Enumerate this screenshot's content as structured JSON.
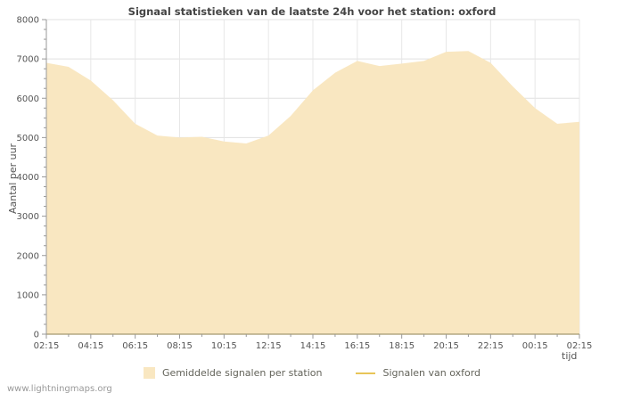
{
  "footer": {
    "watermark": "www.lightningmaps.org"
  },
  "chart_data": {
    "type": "area",
    "title": "Signaal statistieken van de laatste 24h voor het station: oxford",
    "xlabel": "tijd",
    "ylabel": "Aantal per uur",
    "ylim": [
      0,
      8000
    ],
    "y_tick_step": 1000,
    "grid": true,
    "legend_position": "bottom",
    "x": [
      "02:15",
      "03:15",
      "04:15",
      "05:15",
      "06:15",
      "07:15",
      "08:15",
      "09:15",
      "10:15",
      "11:15",
      "12:15",
      "13:15",
      "14:15",
      "15:15",
      "16:15",
      "17:15",
      "18:15",
      "19:15",
      "20:15",
      "21:15",
      "22:15",
      "23:15",
      "00:15",
      "01:15",
      "02:15"
    ],
    "x_tick_labels": [
      "02:15",
      "04:15",
      "06:15",
      "08:15",
      "10:15",
      "12:15",
      "14:15",
      "16:15",
      "18:15",
      "20:15",
      "22:15",
      "00:15",
      "02:15"
    ],
    "series": [
      {
        "name": "Gemiddelde signalen per station",
        "type": "area",
        "color": "#f9e7c1",
        "values": [
          6900,
          6800,
          6450,
          5950,
          5350,
          5050,
          5000,
          5020,
          4900,
          4850,
          5050,
          5550,
          6200,
          6650,
          6950,
          6820,
          6880,
          6950,
          7180,
          7200,
          6900,
          6300,
          5750,
          5350,
          5400
        ]
      },
      {
        "name": "Signalen van oxford",
        "type": "line",
        "color": "#e8c558",
        "values": [
          0,
          0,
          0,
          0,
          0,
          0,
          0,
          0,
          0,
          0,
          0,
          0,
          0,
          0,
          0,
          0,
          0,
          0,
          0,
          0,
          0,
          0,
          0,
          0,
          0
        ]
      }
    ],
    "axis_color": "#999999",
    "gridline_color": "#e0e0e0",
    "tick_label_color": "#555555"
  }
}
